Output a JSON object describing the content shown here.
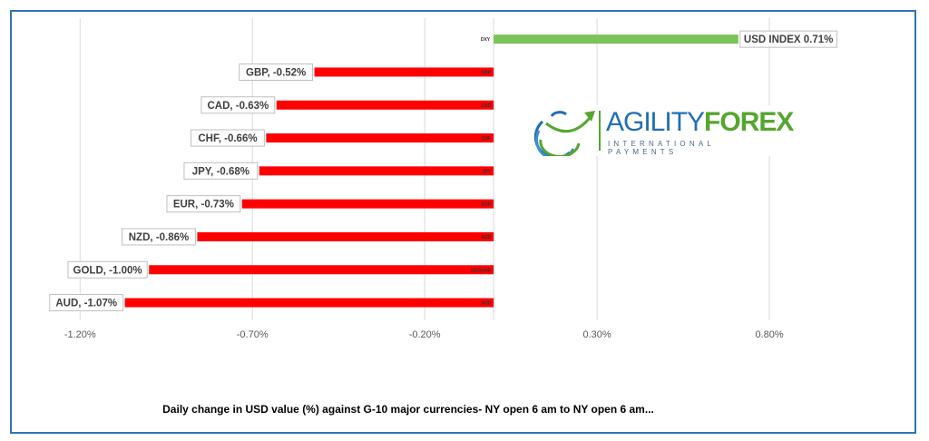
{
  "chart_data": {
    "type": "bar",
    "orientation": "horizontal",
    "categories": [
      "DXY",
      "GBP",
      "CAD",
      "CHF",
      "JPY",
      "EUR",
      "NZD",
      "XAU/USD",
      "AUD"
    ],
    "values": [
      0.71,
      -0.52,
      -0.63,
      -0.66,
      -0.68,
      -0.73,
      -0.86,
      -1.0,
      -1.07
    ],
    "data_labels": [
      "USD INDEX 0.71%",
      "GBP, -0.52%",
      "CAD, -0.63%",
      "CHF, -0.66%",
      "JPY, -0.68%",
      "EUR, -0.73%",
      "NZD, -0.86%",
      "GOLD, -1.00%",
      "AUD, -1.07%"
    ],
    "x_ticks": [
      -1.2,
      -0.7,
      -0.2,
      0.3,
      0.8
    ],
    "x_tick_labels": [
      "-1.20%",
      "-0.70%",
      "-0.20%",
      "0.30%",
      "0.80%"
    ],
    "xlim": [
      -1.327,
      1.2
    ],
    "grid": true,
    "colors": {
      "positive": "#7cc35a",
      "negative": "#ff0000",
      "grid": "#d9d9d9",
      "frame": "#2e75b6"
    },
    "title": "",
    "caption": "Daily change in  USD value (%)  against  G-10 major currencies- NY open 6 am to NY open 6 am..."
  },
  "logo": {
    "name_part1": "AGILITY",
    "name_part2": "FOREX",
    "tagline": "INTERNATIONAL PAYMENTS"
  }
}
